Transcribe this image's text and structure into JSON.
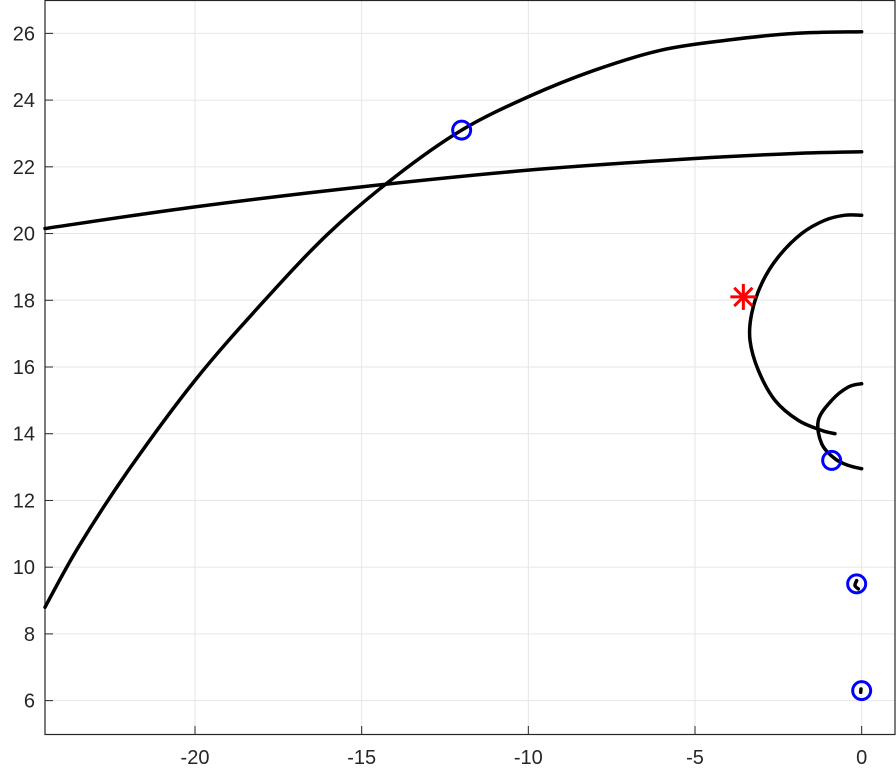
{
  "chart_data": {
    "type": "line",
    "title": "",
    "xlabel": "",
    "ylabel": "",
    "xlim": [
      -24.5,
      1
    ],
    "ylim": [
      5,
      27
    ],
    "grid": true,
    "xticks": [
      -20,
      -15,
      -10,
      -5,
      0
    ],
    "xtick_labels": [
      "-20",
      "-15",
      "-10",
      "-5",
      "0"
    ],
    "yticks": [
      6,
      8,
      10,
      12,
      14,
      16,
      18,
      20,
      22,
      24,
      26
    ],
    "ytick_labels": [
      "6",
      "8",
      "10",
      "12",
      "14",
      "16",
      "18",
      "20",
      "22",
      "24",
      "26"
    ],
    "colors": {
      "curve": "#000000",
      "circle_marker": "#0000ff",
      "star_marker": "#ff0000",
      "grid": "#e6e6e6",
      "axes": "#262626"
    },
    "series": [
      {
        "values": [
          [
            -24.5,
            8.8
          ],
          [
            -23.5,
            10.6
          ],
          [
            -22.0,
            12.9
          ],
          [
            -20.0,
            15.6
          ],
          [
            -18.0,
            17.9
          ],
          [
            -16.0,
            20.0
          ],
          [
            -14.0,
            21.7
          ],
          [
            -12.0,
            23.1
          ],
          [
            -10.0,
            24.1
          ],
          [
            -8.0,
            24.9
          ],
          [
            -6.0,
            25.5
          ],
          [
            -4.0,
            25.8
          ],
          [
            -2.0,
            26.0
          ],
          [
            0.0,
            26.05
          ]
        ]
      },
      {
        "values": [
          [
            -24.5,
            20.15
          ],
          [
            -20.0,
            20.8
          ],
          [
            -15.0,
            21.4
          ],
          [
            -10.0,
            21.9
          ],
          [
            -5.0,
            22.25
          ],
          [
            -2.0,
            22.4
          ],
          [
            0.0,
            22.45
          ]
        ]
      },
      {
        "values": [
          [
            0.0,
            20.55
          ],
          [
            -0.5,
            20.55
          ],
          [
            -1.1,
            20.4
          ],
          [
            -1.8,
            20.0
          ],
          [
            -2.5,
            19.3
          ],
          [
            -3.0,
            18.5
          ],
          [
            -3.3,
            17.6
          ],
          [
            -3.35,
            16.8
          ],
          [
            -3.1,
            15.9
          ],
          [
            -2.6,
            15.0
          ],
          [
            -1.9,
            14.4
          ],
          [
            -1.2,
            14.1
          ],
          [
            -0.8,
            14.0
          ]
        ]
      },
      {
        "values": [
          [
            0.0,
            15.5
          ],
          [
            -0.4,
            15.4
          ],
          [
            -0.9,
            15.0
          ],
          [
            -1.3,
            14.4
          ],
          [
            -1.2,
            13.7
          ],
          [
            -0.8,
            13.25
          ],
          [
            -0.4,
            13.05
          ],
          [
            0.0,
            12.95
          ]
        ]
      },
      {
        "values": [
          [
            -0.15,
            9.6
          ],
          [
            -0.2,
            9.45
          ],
          [
            -0.1,
            9.35
          ]
        ]
      },
      {
        "values": [
          [
            -0.02,
            6.35
          ],
          [
            -0.03,
            6.25
          ]
        ]
      }
    ],
    "circle_markers": [
      [
        -12.0,
        23.1
      ],
      [
        -0.9,
        13.2
      ],
      [
        -0.15,
        9.5
      ],
      [
        0.0,
        6.3
      ]
    ],
    "star_markers": [
      [
        -3.55,
        18.1
      ]
    ]
  }
}
